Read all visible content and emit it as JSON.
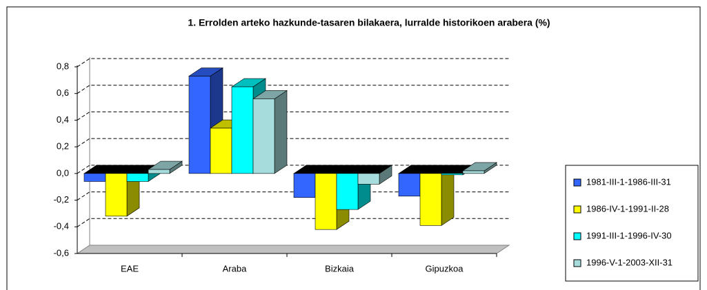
{
  "chart_data": {
    "type": "bar3d",
    "title": "1. Errolden arteko hazkunde-tasaren bilakaera, lurralde historikoen arabera (%)",
    "categories": [
      "EAE",
      "Araba",
      "Bizkaia",
      "Gipuzkoa"
    ],
    "series": [
      {
        "name": "1981-III-1-1986-III-31",
        "color": "#3366ff",
        "values": [
          -0.06,
          0.73,
          -0.18,
          -0.17
        ]
      },
      {
        "name": "1986-IV-1-1991-II-28",
        "color": "#ffff00",
        "values": [
          -0.32,
          0.34,
          -0.42,
          -0.39
        ]
      },
      {
        "name": "1991-III-1-1996-IV-30",
        "color": "#00ffff",
        "values": [
          -0.06,
          0.65,
          -0.27,
          -0.01
        ]
      },
      {
        "name": "1996-V-1-2003-XII-31",
        "color": "#a6dcdc",
        "values": [
          0.03,
          0.56,
          -0.08,
          0.02
        ]
      }
    ],
    "ylim": [
      -0.6,
      0.8
    ],
    "yticks": [
      {
        "value": -0.6,
        "label": "-0,6"
      },
      {
        "value": -0.4,
        "label": "-0,4"
      },
      {
        "value": -0.2,
        "label": "-0,2"
      },
      {
        "value": 0,
        "label": "0,0"
      },
      {
        "value": 0.2,
        "label": "0,2"
      },
      {
        "value": 0.4,
        "label": "0,4"
      },
      {
        "value": 0.6,
        "label": "0,6"
      },
      {
        "value": 0.8,
        "label": "0,8"
      }
    ],
    "grid": true,
    "legend": "right"
  }
}
